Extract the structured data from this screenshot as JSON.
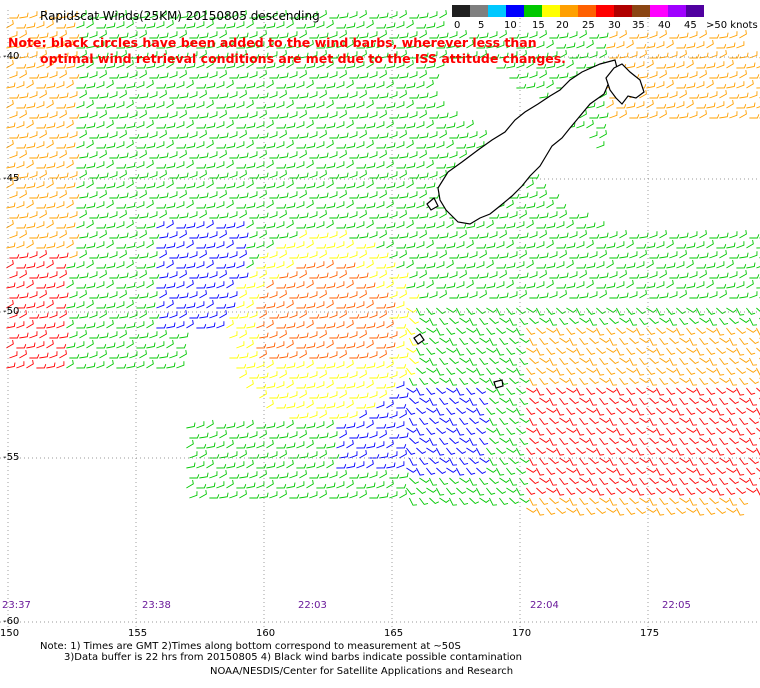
{
  "title": "Rapidscat Winds(25KM) 20150805 descending",
  "note": {
    "line1": "Note: black circles have been added to the wind barbs, wherever less than",
    "line2": "optimal wind retrieval conditions are met due to the ISS attitude changes."
  },
  "scale": {
    "colors": [
      "#202020",
      "#7f7f7f",
      "#00c8ff",
      "#0000ff",
      "#00c800",
      "#ffff00",
      "#ffa000",
      "#ff6000",
      "#ff0000",
      "#b00000",
      "#8b4513",
      "#ff00ff",
      "#a000ff",
      "#5000a0"
    ],
    "labels": [
      "0",
      "5",
      "10",
      "15",
      "20",
      "25",
      "30",
      "35",
      "40",
      "45",
      ">50 knots"
    ]
  },
  "lat_labels": [
    "-40",
    "-45",
    "-50",
    "-55",
    "-60"
  ],
  "lon_labels": [
    "150",
    "155",
    "160",
    "165",
    "170",
    "175"
  ],
  "time_labels": [
    "23:37",
    "23:38",
    "22:03",
    "22:04",
    "22:05"
  ],
  "footer": {
    "line1": "Note: 1) Times are GMT 2)Times along bottom correspond to measurement at ~50S",
    "line2": "3)Data buffer is 22 hrs from 20150805 4) Black wind barbs indicate possible contamination",
    "line3": "NOAA/NESDIS/Center for Satellite Applications and Research"
  }
}
